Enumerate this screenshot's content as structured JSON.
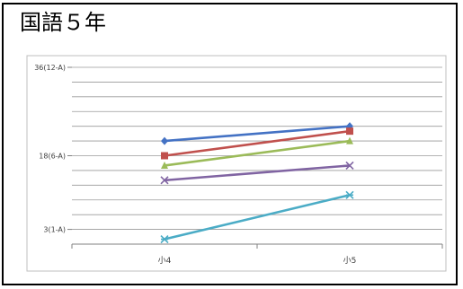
{
  "title": "国語５年",
  "chart_data": {
    "type": "line",
    "title": "",
    "xlabel": "",
    "ylabel": "",
    "categories": [
      "小4",
      "小5"
    ],
    "y_ticks": [
      {
        "value": 3,
        "label": "3(1-A)"
      },
      {
        "value": 18,
        "label": "18(6-A)"
      },
      {
        "value": 36,
        "label": "36(12-A)"
      }
    ],
    "ylim": [
      0,
      36
    ],
    "grid": true,
    "legend": "none",
    "series": [
      {
        "marker": "diamond",
        "color": "#4472c4",
        "values": [
          21,
          24
        ]
      },
      {
        "marker": "square",
        "color": "#c0504d",
        "values": [
          18,
          23
        ]
      },
      {
        "marker": "triangle",
        "color": "#9bbb59",
        "values": [
          16,
          21
        ]
      },
      {
        "marker": "x",
        "color": "#8064a2",
        "values": [
          13,
          16
        ]
      },
      {
        "marker": "star",
        "color": "#4bacc6",
        "values": [
          1,
          10
        ]
      }
    ]
  }
}
